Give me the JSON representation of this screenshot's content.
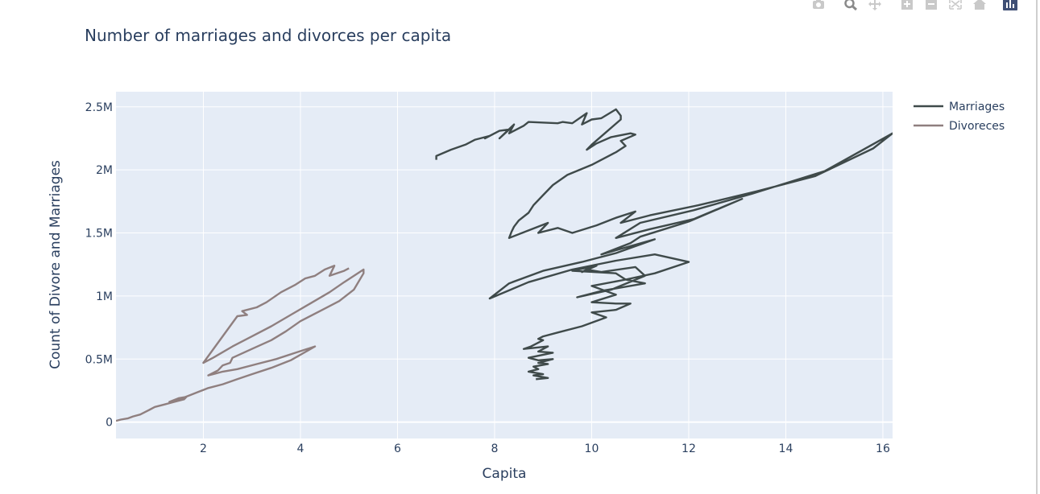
{
  "modebar": {
    "buttons": [
      {
        "icon": "camera-icon"
      },
      {
        "icon": "zoom-icon"
      },
      {
        "icon": "pan-icon"
      },
      {
        "icon": "zoom-in-icon"
      },
      {
        "icon": "zoom-out-icon"
      },
      {
        "icon": "autoscale-icon"
      },
      {
        "icon": "home-icon"
      },
      {
        "icon": "plotly-logo-icon"
      }
    ]
  },
  "chart_data": {
    "type": "line",
    "title": "Number of marriages and divorces per capita",
    "xlabel": "Capita",
    "ylabel": "Count of Divore and Marriages",
    "xlim": [
      0.2,
      16.2
    ],
    "ylim": [
      -130000,
      2620000
    ],
    "xticks": [
      2,
      4,
      6,
      8,
      10,
      12,
      14,
      16
    ],
    "yticks": [
      0,
      500000,
      1000000,
      1500000,
      2000000,
      2500000
    ],
    "ytick_labels": [
      "0",
      "0.5M",
      "1M",
      "1.5M",
      "2M",
      "2.5M"
    ],
    "grid": true,
    "legend_position": "top-right",
    "colors": {
      "plot_bg": "#e5ecf6",
      "grid": "#ffffff",
      "text": "#2a3f5f"
    },
    "series": [
      {
        "name": "Marriages",
        "color": "#3f4a4a",
        "points": [
          [
            6.8,
            2080000
          ],
          [
            6.8,
            2110000
          ],
          [
            7.1,
            2160000
          ],
          [
            7.4,
            2200000
          ],
          [
            7.6,
            2240000
          ],
          [
            7.9,
            2270000
          ],
          [
            7.8,
            2250000
          ],
          [
            8.1,
            2310000
          ],
          [
            8.3,
            2320000
          ],
          [
            8.1,
            2250000
          ],
          [
            8.4,
            2360000
          ],
          [
            8.3,
            2290000
          ],
          [
            8.6,
            2350000
          ],
          [
            8.7,
            2380000
          ],
          [
            9.3,
            2370000
          ],
          [
            9.4,
            2380000
          ],
          [
            9.6,
            2370000
          ],
          [
            9.9,
            2450000
          ],
          [
            9.8,
            2360000
          ],
          [
            10.0,
            2400000
          ],
          [
            10.2,
            2410000
          ],
          [
            10.5,
            2480000
          ],
          [
            10.6,
            2430000
          ],
          [
            10.6,
            2400000
          ],
          [
            10.3,
            2300000
          ],
          [
            10.0,
            2200000
          ],
          [
            9.9,
            2160000
          ],
          [
            10.1,
            2210000
          ],
          [
            10.4,
            2260000
          ],
          [
            10.8,
            2290000
          ],
          [
            10.9,
            2280000
          ],
          [
            10.6,
            2230000
          ],
          [
            10.7,
            2190000
          ],
          [
            10.5,
            2140000
          ],
          [
            10.0,
            2040000
          ],
          [
            9.5,
            1960000
          ],
          [
            9.2,
            1880000
          ],
          [
            9.0,
            1800000
          ],
          [
            8.8,
            1720000
          ],
          [
            8.7,
            1660000
          ],
          [
            8.5,
            1600000
          ],
          [
            8.4,
            1550000
          ],
          [
            8.35,
            1510000
          ],
          [
            8.3,
            1460000
          ],
          [
            8.7,
            1520000
          ],
          [
            9.1,
            1580000
          ],
          [
            8.9,
            1500000
          ],
          [
            9.3,
            1540000
          ],
          [
            9.6,
            1500000
          ],
          [
            10.1,
            1560000
          ],
          [
            10.5,
            1620000
          ],
          [
            10.9,
            1670000
          ],
          [
            10.6,
            1580000
          ],
          [
            11.2,
            1640000
          ],
          [
            12.2,
            1720000
          ],
          [
            13.4,
            1830000
          ],
          [
            14.6,
            1950000
          ],
          [
            15.8,
            2170000
          ],
          [
            16.2,
            2290000
          ],
          [
            14.8,
            1990000
          ],
          [
            13.3,
            1810000
          ],
          [
            12.1,
            1680000
          ],
          [
            11.0,
            1580000
          ],
          [
            10.5,
            1460000
          ],
          [
            11.2,
            1530000
          ],
          [
            12.1,
            1610000
          ],
          [
            13.1,
            1770000
          ],
          [
            12.0,
            1590000
          ],
          [
            11.5,
            1530000
          ],
          [
            11.0,
            1470000
          ],
          [
            10.8,
            1420000
          ],
          [
            10.2,
            1330000
          ],
          [
            11.3,
            1450000
          ],
          [
            10.5,
            1340000
          ],
          [
            9.8,
            1270000
          ],
          [
            9.0,
            1200000
          ],
          [
            8.3,
            1100000
          ],
          [
            7.9,
            980000
          ],
          [
            8.7,
            1110000
          ],
          [
            9.6,
            1210000
          ],
          [
            10.5,
            1280000
          ],
          [
            11.3,
            1330000
          ],
          [
            12.0,
            1270000
          ],
          [
            11.3,
            1180000
          ],
          [
            10.7,
            1130000
          ],
          [
            11.1,
            1100000
          ],
          [
            10.2,
            1040000
          ],
          [
            9.7,
            990000
          ],
          [
            10.4,
            1050000
          ],
          [
            11.1,
            1160000
          ],
          [
            10.9,
            1230000
          ],
          [
            10.2,
            1190000
          ],
          [
            9.9,
            1210000
          ],
          [
            9.8,
            1190000
          ],
          [
            10.1,
            1240000
          ],
          [
            9.6,
            1200000
          ],
          [
            10.5,
            1180000
          ],
          [
            10.7,
            1130000
          ],
          [
            10.0,
            1080000
          ],
          [
            10.5,
            1010000
          ],
          [
            10.0,
            950000
          ],
          [
            10.5,
            940000
          ],
          [
            10.8,
            940000
          ],
          [
            10.5,
            890000
          ],
          [
            10.0,
            870000
          ],
          [
            10.3,
            830000
          ],
          [
            9.8,
            760000
          ],
          [
            9.3,
            710000
          ],
          [
            9.0,
            680000
          ],
          [
            8.9,
            660000
          ],
          [
            9.0,
            650000
          ],
          [
            8.75,
            600000
          ],
          [
            8.6,
            580000
          ],
          [
            9.1,
            600000
          ],
          [
            8.9,
            560000
          ],
          [
            9.2,
            550000
          ],
          [
            8.7,
            510000
          ],
          [
            8.9,
            490000
          ],
          [
            9.2,
            500000
          ],
          [
            8.9,
            470000
          ],
          [
            9.1,
            460000
          ],
          [
            8.8,
            440000
          ],
          [
            8.9,
            420000
          ],
          [
            8.7,
            400000
          ],
          [
            9.0,
            380000
          ],
          [
            8.8,
            370000
          ],
          [
            9.1,
            350000
          ],
          [
            8.85,
            340000
          ]
        ]
      },
      {
        "name": "Divoreces",
        "color": "#8f7f7f",
        "points": [
          [
            0.2,
            10000
          ],
          [
            0.3,
            20000
          ],
          [
            0.45,
            30000
          ],
          [
            0.55,
            45000
          ],
          [
            0.7,
            60000
          ],
          [
            0.8,
            80000
          ],
          [
            0.9,
            100000
          ],
          [
            1.0,
            120000
          ],
          [
            1.2,
            140000
          ],
          [
            1.4,
            160000
          ],
          [
            1.6,
            180000
          ],
          [
            1.65,
            200000
          ],
          [
            1.5,
            190000
          ],
          [
            1.3,
            160000
          ],
          [
            1.5,
            180000
          ],
          [
            1.7,
            210000
          ],
          [
            1.9,
            240000
          ],
          [
            2.1,
            270000
          ],
          [
            2.4,
            300000
          ],
          [
            2.7,
            340000
          ],
          [
            3.0,
            380000
          ],
          [
            3.4,
            430000
          ],
          [
            3.8,
            490000
          ],
          [
            4.3,
            600000
          ],
          [
            3.9,
            550000
          ],
          [
            3.5,
            500000
          ],
          [
            3.1,
            460000
          ],
          [
            2.7,
            420000
          ],
          [
            2.4,
            400000
          ],
          [
            2.2,
            380000
          ],
          [
            2.1,
            370000
          ],
          [
            2.3,
            410000
          ],
          [
            2.4,
            450000
          ],
          [
            2.55,
            470000
          ],
          [
            2.6,
            510000
          ],
          [
            3.0,
            580000
          ],
          [
            3.4,
            650000
          ],
          [
            3.7,
            720000
          ],
          [
            4.0,
            800000
          ],
          [
            4.4,
            880000
          ],
          [
            4.8,
            960000
          ],
          [
            5.1,
            1050000
          ],
          [
            5.3,
            1180000
          ],
          [
            5.3,
            1210000
          ],
          [
            4.9,
            1110000
          ],
          [
            4.6,
            1030000
          ],
          [
            4.2,
            940000
          ],
          [
            3.8,
            850000
          ],
          [
            3.4,
            760000
          ],
          [
            3.0,
            680000
          ],
          [
            2.6,
            600000
          ],
          [
            2.2,
            510000
          ],
          [
            2.0,
            470000
          ],
          [
            2.7,
            840000
          ],
          [
            2.9,
            850000
          ],
          [
            2.8,
            880000
          ],
          [
            3.1,
            910000
          ],
          [
            3.3,
            950000
          ],
          [
            3.6,
            1030000
          ],
          [
            3.9,
            1090000
          ],
          [
            4.1,
            1140000
          ],
          [
            4.3,
            1160000
          ],
          [
            4.5,
            1210000
          ],
          [
            4.7,
            1240000
          ],
          [
            4.6,
            1160000
          ],
          [
            4.9,
            1200000
          ],
          [
            5.0,
            1220000
          ]
        ]
      }
    ]
  }
}
